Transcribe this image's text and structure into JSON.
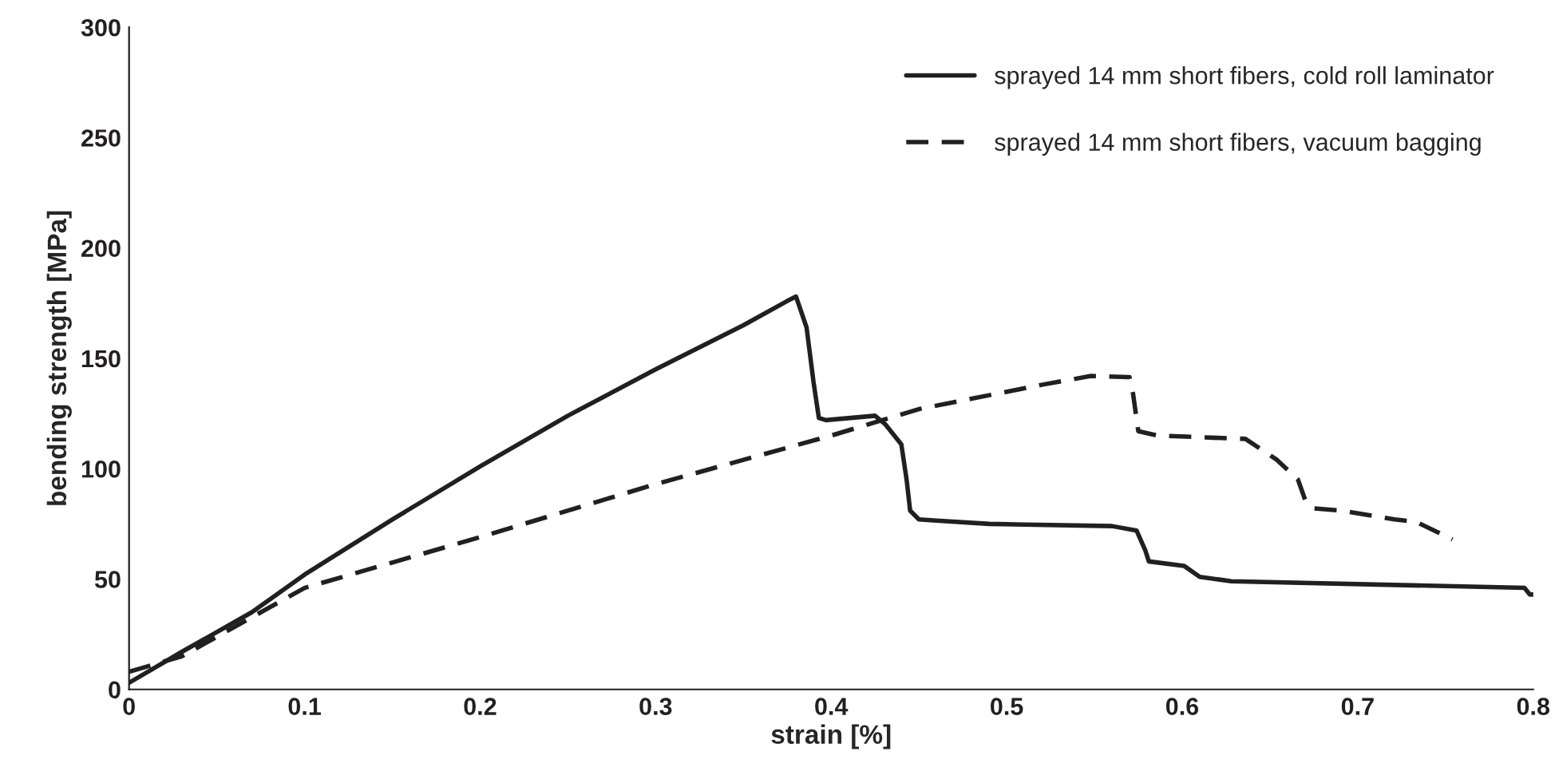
{
  "chart_data": {
    "type": "line",
    "xlabel": "strain [%]",
    "ylabel": "bending strength [MPa]",
    "xlim": [
      0,
      0.8
    ],
    "xticks": [
      {
        "value": 0,
        "label": "0"
      },
      0.1,
      0.2,
      0.3,
      0.4,
      0.5,
      0.6,
      0.7,
      0.8
    ],
    "ylim": [
      0,
      300
    ],
    "yticks": [
      0,
      50,
      100,
      150,
      200,
      250,
      300
    ],
    "grid": false,
    "legend": "top right",
    "series": [
      {
        "name": "sprayed 14 mm short fibers, cold roll laminator",
        "color": "#231f20",
        "line_style": "solid",
        "x": [
          0,
          0.03,
          0.07,
          0.1,
          0.15,
          0.2,
          0.25,
          0.3,
          0.35,
          0.375,
          0.38,
          0.386,
          0.39,
          0.393,
          0.397,
          0.425,
          0.431,
          0.44,
          0.443,
          0.445,
          0.45,
          0.46,
          0.49,
          0.56,
          0.574,
          0.579,
          0.581,
          0.601,
          0.61,
          0.628,
          0.795,
          0.798,
          0.8
        ],
        "values": [
          3,
          17,
          35,
          52,
          77,
          101,
          124,
          145,
          165,
          176,
          178,
          164,
          139,
          123,
          122,
          124,
          120,
          111,
          95,
          81,
          77,
          76.5,
          75,
          74,
          72,
          63,
          58,
          56,
          51,
          49,
          46,
          43,
          43
        ]
      },
      {
        "name": "sprayed 14 mm short fibers, vacuum bagging",
        "color": "#231f20",
        "line_style": "dashed",
        "x": [
          0,
          0.03,
          0.1,
          0.2,
          0.3,
          0.4,
          0.45,
          0.52,
          0.548,
          0.57,
          0.572,
          0.575,
          0.586,
          0.636,
          0.654,
          0.666,
          0.67,
          0.675,
          0.691,
          0.721,
          0.733,
          0.754
        ],
        "values": [
          8,
          15,
          46,
          69,
          93,
          115,
          127,
          138,
          142,
          141.5,
          134,
          117,
          115,
          113.5,
          104,
          95,
          86,
          82,
          81,
          77,
          76,
          68
        ]
      }
    ]
  }
}
